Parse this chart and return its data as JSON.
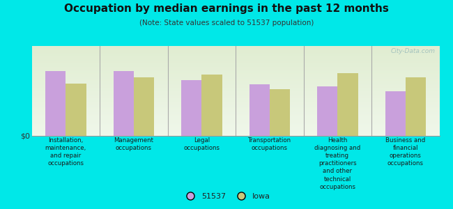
{
  "title": "Occupation by median earnings in the past 12 months",
  "subtitle": "(Note: State values scaled to 51537 population)",
  "categories": [
    "Installation,\nmaintenance,\nand repair\noccupations",
    "Management\noccupations",
    "Legal\noccupations",
    "Transportation\noccupations",
    "Health\ndiagnosing and\ntreating\npractitioners\nand other\ntechnical\noccupations",
    "Business and\nfinancial\noperations\noccupations"
  ],
  "values_51537": [
    0.72,
    0.72,
    0.62,
    0.57,
    0.55,
    0.5
  ],
  "values_iowa": [
    0.58,
    0.65,
    0.68,
    0.52,
    0.7,
    0.65
  ],
  "color_51537": "#c9a0dc",
  "color_iowa": "#c8c87a",
  "background_color": "#00e8e8",
  "ylabel": "$0",
  "watermark": "City-Data.com",
  "legend_label_51537": "51537",
  "legend_label_iowa": "Iowa",
  "bar_width": 0.3
}
